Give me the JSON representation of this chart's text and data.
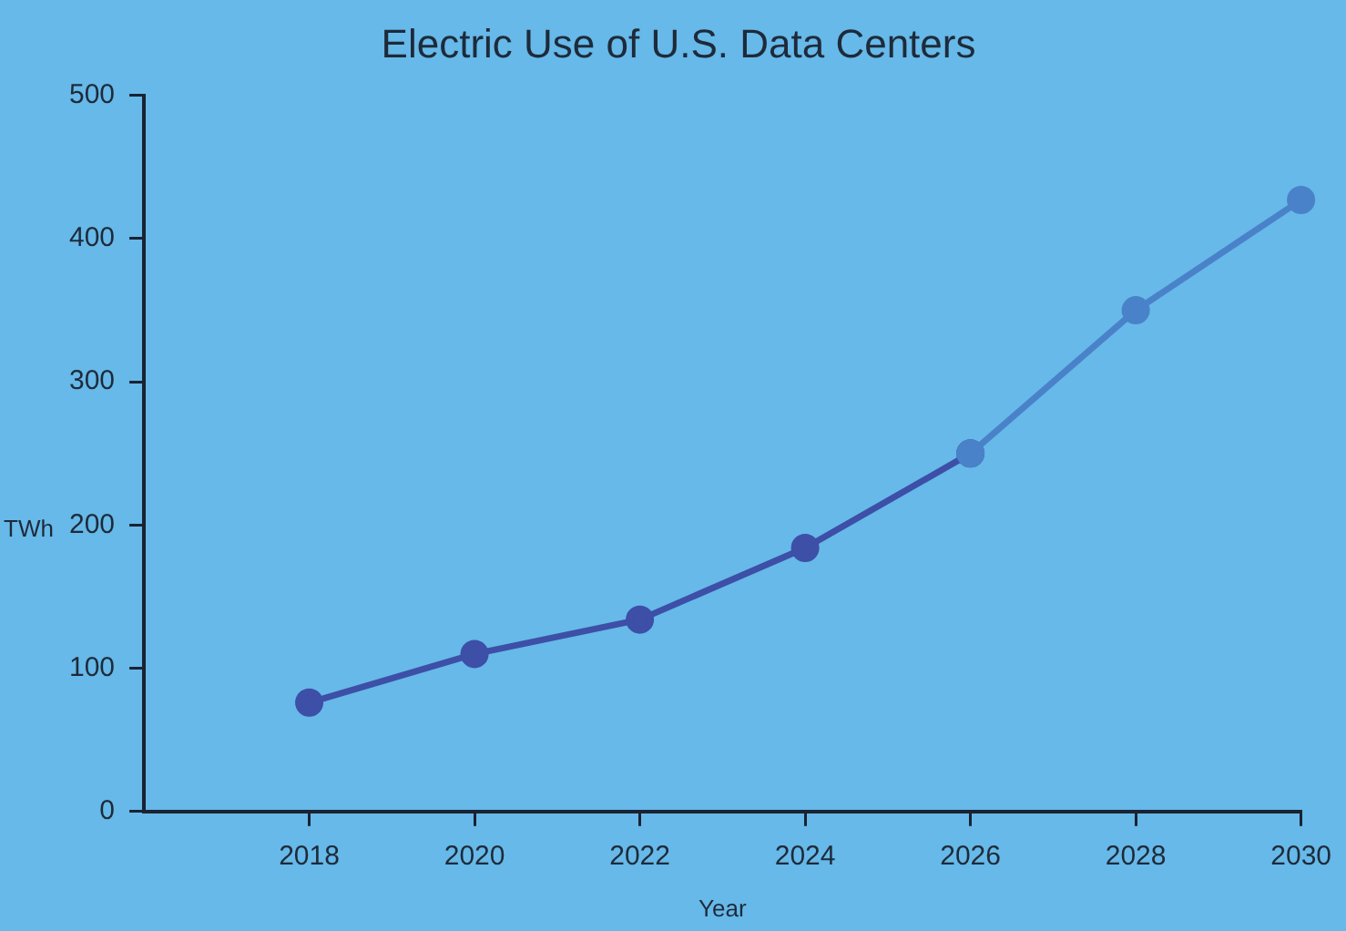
{
  "chart_data": {
    "type": "line",
    "title": "Electric Use of U.S. Data Centers",
    "xlabel": "Year",
    "ylabel": "TWh",
    "series": [
      {
        "color": "#3d4fa6",
        "x": [
          2018,
          2020,
          2022,
          2024,
          2026
        ],
        "values": [
          76,
          110,
          134,
          184,
          250
        ]
      },
      {
        "color": "#4a82c9",
        "x": [
          2026,
          2028,
          2030
        ],
        "values": [
          250,
          350,
          427
        ]
      }
    ],
    "xlim": [
      2016,
      2030
    ],
    "xticks": [
      2018,
      2020,
      2022,
      2024,
      2026,
      2028,
      2030
    ],
    "ylim": [
      0,
      500
    ],
    "yticks": [
      0,
      100,
      200,
      300,
      400,
      500
    ],
    "grid": false,
    "legend": false,
    "marker": "circle",
    "line_style": "solid"
  }
}
